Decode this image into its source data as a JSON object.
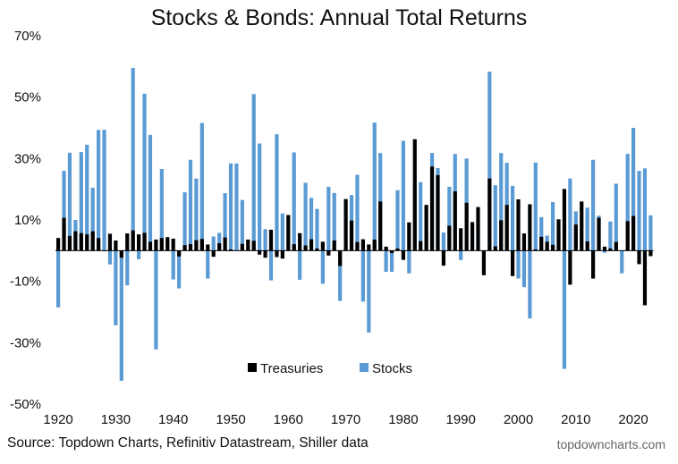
{
  "chart_data": {
    "type": "bar",
    "title": "Stocks & Bonds: Annual Total Returns",
    "xlabel": "",
    "ylabel": "",
    "ylim": [
      -50,
      70
    ],
    "yticks": [
      70,
      50,
      30,
      10,
      -10,
      -30,
      -50
    ],
    "ytick_labels": [
      "70%",
      "50%",
      "30%",
      "10%",
      "-10%",
      "-30%",
      "-50%"
    ],
    "xticks": [
      1920,
      1930,
      1940,
      1950,
      1960,
      1970,
      1980,
      1990,
      2000,
      2010,
      2020
    ],
    "xtick_labels": [
      "1920",
      "1930",
      "1940",
      "1950",
      "1960",
      "1970",
      "1980",
      "1990",
      "2000",
      "2010",
      "2020"
    ],
    "legend": {
      "position": "bottom-center",
      "entries": [
        "Treasuries",
        "Stocks"
      ]
    },
    "colors": {
      "Treasuries": "#000000",
      "Stocks": "#5b9bd5"
    },
    "years": [
      1920,
      1921,
      1922,
      1923,
      1924,
      1925,
      1926,
      1927,
      1928,
      1929,
      1930,
      1931,
      1932,
      1933,
      1934,
      1935,
      1936,
      1937,
      1938,
      1939,
      1940,
      1941,
      1942,
      1943,
      1944,
      1945,
      1946,
      1947,
      1948,
      1949,
      1950,
      1951,
      1952,
      1953,
      1954,
      1955,
      1956,
      1957,
      1958,
      1959,
      1960,
      1961,
      1962,
      1963,
      1964,
      1965,
      1966,
      1967,
      1968,
      1969,
      1970,
      1971,
      1972,
      1973,
      1974,
      1975,
      1976,
      1977,
      1978,
      1979,
      1980,
      1981,
      1982,
      1983,
      1984,
      1985,
      1986,
      1987,
      1988,
      1989,
      1990,
      1991,
      1992,
      1993,
      1994,
      1995,
      1996,
      1997,
      1998,
      1999,
      2000,
      2001,
      2002,
      2003,
      2004,
      2005,
      2006,
      2007,
      2008,
      2009,
      2010,
      2011,
      2012,
      2013,
      2014,
      2015,
      2016,
      2017,
      2018,
      2019,
      2020,
      2021,
      2022,
      2023
    ],
    "series": [
      {
        "name": "Stocks",
        "values": [
          -18.5,
          26,
          31.9,
          10,
          32.1,
          34.5,
          20.5,
          39.3,
          39.4,
          -4.5,
          -24.3,
          -42.4,
          -11.3,
          59.5,
          -2.8,
          51.1,
          37.7,
          -32.2,
          26.6,
          1.7,
          -9.4,
          -12.3,
          19,
          29.6,
          23.5,
          41.6,
          -9.1,
          4.6,
          5.8,
          18.7,
          28.4,
          28.4,
          16.5,
          0.4,
          51,
          34.9,
          7,
          -9.7,
          37.9,
          12.1,
          1.5,
          32,
          -9.5,
          22.1,
          17.2,
          13.6,
          -10.8,
          20.8,
          18.8,
          -16.4,
          1.1,
          18.1,
          24.7,
          -16.6,
          -26.7,
          41.7,
          31.8,
          -6.9,
          -6.9,
          19.7,
          35.8,
          -7.4,
          21.5,
          22.3,
          6.3,
          31.8,
          26.9,
          5.9,
          20.8,
          31.5,
          -3.1,
          30,
          7.6,
          10.1,
          -0.9,
          58.3,
          21.3,
          31.8,
          28.6,
          21.1,
          -9.1,
          -11.9,
          -22.1,
          28.7,
          10.9,
          4.9,
          15.8,
          5.5,
          -38.5,
          23.5,
          12.8,
          0,
          14,
          29.6,
          11.4,
          -0.7,
          9.5,
          21.8,
          -7.4,
          31.5,
          40,
          26,
          26.8,
          11.5
        ]
      },
      {
        "name": "Treasuries",
        "values": [
          4.1,
          10.7,
          4.8,
          6.3,
          5.7,
          5.3,
          6.3,
          4.1,
          -0.1,
          5.5,
          3.3,
          -2.3,
          5.6,
          6.6,
          5.3,
          5.8,
          2.9,
          3.6,
          4.1,
          4.4,
          3.9,
          -1.9,
          1.8,
          2.1,
          3.4,
          3.8,
          2,
          -2,
          2.4,
          4.3,
          0.4,
          0.1,
          2.2,
          3.6,
          3.2,
          -1.3,
          -2.3,
          6.8,
          -2.1,
          -2.6,
          11.6,
          2.1,
          5.7,
          1.7,
          3.7,
          0.7,
          2.9,
          -1.6,
          3.3,
          -5,
          16.8,
          9.8,
          2.8,
          3.7,
          2,
          3.6,
          16,
          1.3,
          -0.8,
          0.7,
          -3,
          9.2,
          36.3,
          3.1,
          14.9,
          27.4,
          24.6,
          -4.9,
          8.1,
          19.3,
          7.3,
          15.6,
          9.3,
          14.2,
          -8,
          23.5,
          1.4,
          9.9,
          14.9,
          -8.3,
          16.7,
          5.6,
          15.1,
          0.4,
          4.5,
          2.9,
          1.9,
          10.2,
          20.1,
          -11.1,
          8.5,
          16,
          3,
          -9.1,
          10.7,
          1.3,
          0.7,
          2.8,
          0,
          9.6,
          11.3,
          -4.4,
          -17.8,
          -1.8
        ]
      }
    ]
  },
  "source": "Source: Topdown Charts, Refinitiv Datastream, Shiller data",
  "brand": "topdowncharts.com"
}
